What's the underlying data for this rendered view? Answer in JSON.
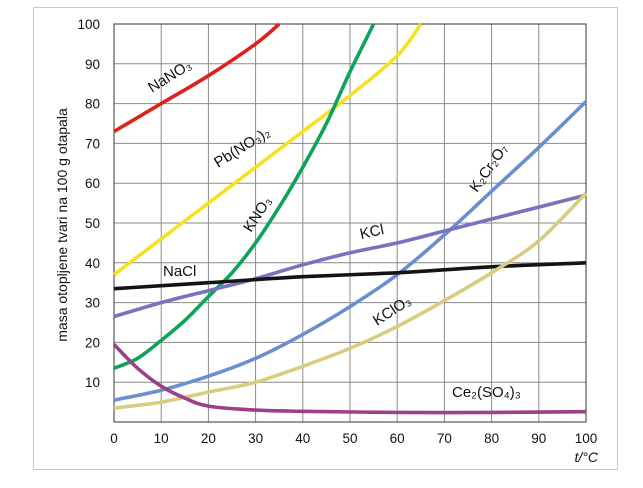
{
  "chart_data": {
    "type": "line",
    "title": "",
    "xlabel": "t/°C",
    "ylabel": "masa otopljene tvari na 100 g otapala",
    "xlim": [
      0,
      100
    ],
    "ylim": [
      0,
      100
    ],
    "x_ticks": [
      0,
      10,
      20,
      30,
      40,
      50,
      60,
      70,
      80,
      90,
      100
    ],
    "y_ticks": [
      10,
      20,
      30,
      40,
      50,
      60,
      70,
      80,
      90,
      100
    ],
    "grid": true,
    "series": [
      {
        "name": "NaNO3",
        "label": "NaNO₃",
        "color": "#e0201b",
        "x": [
          0,
          10,
          20,
          30,
          35
        ],
        "y": [
          73,
          80,
          87,
          95,
          100
        ]
      },
      {
        "name": "Pb(NO3)2",
        "label": "Pb(NO₃)₂",
        "color": "#f5e21e",
        "x": [
          0,
          10,
          20,
          30,
          40,
          50,
          60,
          65
        ],
        "y": [
          37,
          46,
          55,
          64,
          73,
          82,
          92,
          100
        ]
      },
      {
        "name": "KNO3",
        "label": "KNO₃",
        "color": "#0ea35a",
        "x": [
          0,
          5,
          10,
          15,
          20,
          25,
          30,
          35,
          40,
          45,
          50,
          55
        ],
        "y": [
          13.5,
          16,
          20.5,
          25.5,
          31.5,
          37.5,
          45,
          54,
          64,
          75,
          88,
          100
        ]
      },
      {
        "name": "K2Cr2O7",
        "label": "K₂Cr₂O₇",
        "color": "#6a8fcf",
        "x": [
          0,
          10,
          20,
          30,
          40,
          50,
          60,
          70,
          80,
          90,
          100
        ],
        "y": [
          5.5,
          8,
          11.5,
          16,
          22,
          29,
          37,
          47,
          58,
          69,
          80.5
        ]
      },
      {
        "name": "KCl",
        "label": "KCl",
        "color": "#7a72bf",
        "x": [
          0,
          10,
          20,
          30,
          40,
          50,
          60,
          70,
          80,
          90,
          100
        ],
        "y": [
          26.5,
          30,
          33,
          36,
          39.5,
          42.5,
          45,
          48,
          51,
          54,
          57
        ]
      },
      {
        "name": "NaCl",
        "label": "NaCl",
        "color": "#141414",
        "x": [
          0,
          20,
          40,
          60,
          80,
          100
        ],
        "y": [
          33.5,
          35,
          36.5,
          37.5,
          39,
          40
        ]
      },
      {
        "name": "KClO3",
        "label": "KClO₃",
        "color": "#d9cc7f",
        "x": [
          0,
          10,
          20,
          30,
          40,
          50,
          60,
          70,
          80,
          90,
          100
        ],
        "y": [
          3.5,
          5,
          7.5,
          10,
          14,
          18.5,
          24,
          30.5,
          37.5,
          45.5,
          57.5
        ]
      },
      {
        "name": "Ce2(SO4)3",
        "label": "Ce₂(SO₄)₃",
        "color": "#9e3f87",
        "x": [
          0,
          5,
          10,
          15,
          20,
          30,
          40,
          60,
          80,
          100
        ],
        "y": [
          19.5,
          13.5,
          9,
          6,
          4,
          3,
          2.7,
          2.4,
          2.4,
          2.6
        ]
      }
    ]
  }
}
